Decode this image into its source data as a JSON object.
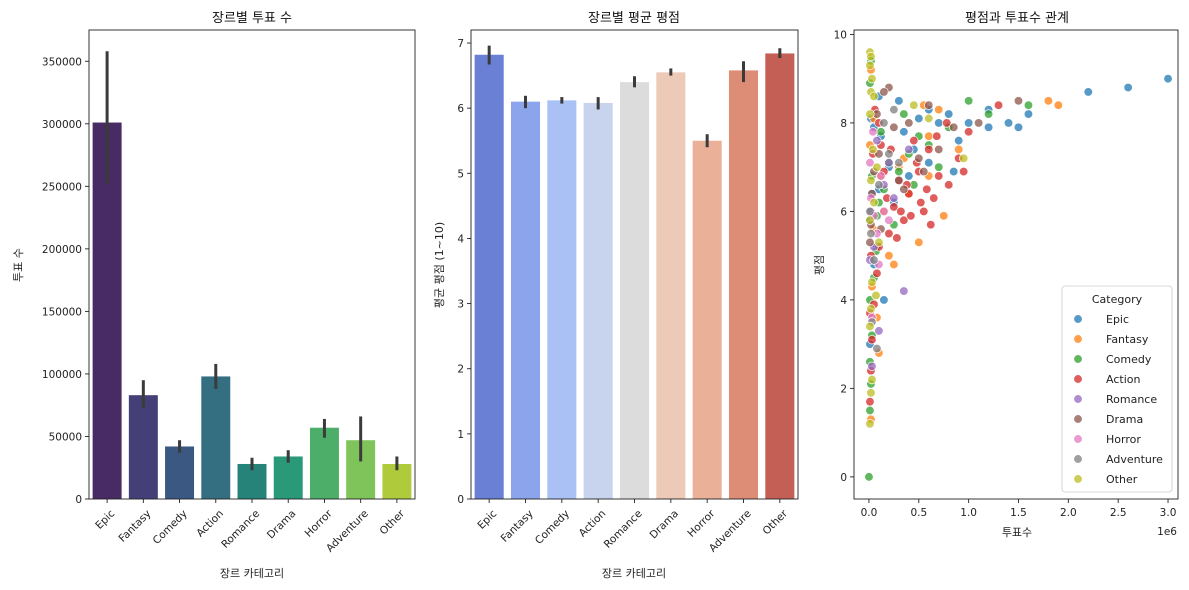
{
  "chart_data": [
    {
      "type": "bar",
      "title": "장르별 투표 수",
      "xlabel": "장르 카테고리",
      "ylabel": "투표 수",
      "ylim": [
        0,
        375000
      ],
      "yticks": [
        0,
        50000,
        100000,
        150000,
        200000,
        250000,
        300000,
        350000
      ],
      "categories": [
        "Epic",
        "Fantasy",
        "Comedy",
        "Action",
        "Romance",
        "Drama",
        "Horror",
        "Adventure",
        "Other"
      ],
      "values": [
        301000,
        83000,
        42000,
        98000,
        28000,
        34000,
        57000,
        47000,
        28000
      ],
      "error_low": [
        252000,
        73000,
        37000,
        88000,
        23000,
        29000,
        49000,
        30000,
        23000
      ],
      "error_high": [
        358000,
        95000,
        47000,
        108000,
        33000,
        39000,
        64000,
        66000,
        34000
      ],
      "colors": [
        "#482a65",
        "#443f77",
        "#3b5883",
        "#336f80",
        "#26837a",
        "#2a9978",
        "#4dae6a",
        "#7fc35b",
        "#afcb3c"
      ]
    },
    {
      "type": "bar",
      "title": "장르별 평균 평점",
      "xlabel": "장르 카테고리",
      "ylabel": "평균 평점 (1~10)",
      "ylim": [
        0,
        7.2
      ],
      "yticks": [
        0,
        1,
        2,
        3,
        4,
        5,
        6,
        7
      ],
      "categories": [
        "Epic",
        "Fantasy",
        "Comedy",
        "Action",
        "Romance",
        "Drama",
        "Horror",
        "Adventure",
        "Other"
      ],
      "values": [
        6.82,
        6.1,
        6.12,
        6.08,
        6.4,
        6.55,
        5.5,
        6.58,
        6.84
      ],
      "error_low": [
        6.67,
        6.0,
        6.07,
        5.98,
        6.32,
        6.5,
        5.4,
        6.4,
        6.77
      ],
      "error_high": [
        6.96,
        6.19,
        6.17,
        6.17,
        6.49,
        6.61,
        5.6,
        6.72,
        6.92
      ],
      "colors": [
        "#6a80d5",
        "#8ba4ec",
        "#aac1f5",
        "#c8d4ee",
        "#dcdcdc",
        "#edcab8",
        "#ebb198",
        "#dd8d76",
        "#c45f55"
      ]
    },
    {
      "type": "scatter",
      "title": "평점과 투표수 관계",
      "xlabel": "투표수",
      "ylabel": "평점",
      "x_offset_label": "1e6",
      "xlim": [
        -0.15,
        3.1
      ],
      "ylim": [
        -0.5,
        10.1
      ],
      "xticks": [
        0.0,
        0.5,
        1.0,
        1.5,
        2.0,
        2.5,
        3.0
      ],
      "xtick_labels": [
        "0.0",
        "0.5",
        "1.0",
        "1.5",
        "2.0",
        "2.5",
        "3.0"
      ],
      "yticks": [
        0,
        2,
        4,
        6,
        8,
        10
      ],
      "legend": {
        "title": "Category",
        "placement": "lower-right",
        "entries": [
          "Epic",
          "Fantasy",
          "Comedy",
          "Action",
          "Romance",
          "Drama",
          "Horror",
          "Adventure",
          "Other"
        ],
        "colors": [
          "#1f77b4",
          "#ff7f0e",
          "#2ca02c",
          "#d62728",
          "#9467bd",
          "#8c564b",
          "#e377c2",
          "#7f7f7f",
          "#bcbd22"
        ]
      },
      "series": [
        {
          "name": "Epic",
          "points": [
            [
              3.0,
              9.0
            ],
            [
              2.6,
              8.8
            ],
            [
              2.2,
              8.7
            ],
            [
              1.6,
              8.2
            ],
            [
              1.5,
              7.9
            ],
            [
              1.4,
              8.0
            ],
            [
              1.2,
              8.3
            ],
            [
              1.2,
              7.9
            ],
            [
              1.0,
              8.0
            ],
            [
              0.9,
              7.6
            ],
            [
              0.8,
              8.2
            ],
            [
              0.7,
              8.0
            ],
            [
              0.6,
              8.3
            ],
            [
              0.5,
              8.1
            ],
            [
              0.45,
              7.4
            ],
            [
              0.4,
              6.8
            ],
            [
              0.35,
              7.8
            ],
            [
              0.3,
              8.5
            ],
            [
              0.2,
              7.0
            ],
            [
              0.15,
              4.0
            ],
            [
              0.12,
              7.7
            ],
            [
              0.1,
              6.5
            ],
            [
              0.08,
              5.2
            ],
            [
              0.05,
              7.9
            ],
            [
              0.03,
              6.4
            ],
            [
              0.02,
              8.1
            ],
            [
              0.05,
              4.8
            ],
            [
              0.25,
              6.2
            ],
            [
              0.6,
              7.1
            ],
            [
              0.85,
              6.9
            ],
            [
              0.1,
              8.6
            ],
            [
              0.01,
              3.0
            ],
            [
              0.01,
              5.8
            ]
          ]
        },
        {
          "name": "Fantasy",
          "points": [
            [
              1.8,
              8.5
            ],
            [
              1.9,
              8.4
            ],
            [
              0.75,
              5.9
            ],
            [
              0.5,
              5.3
            ],
            [
              0.6,
              7.7
            ],
            [
              0.3,
              7.0
            ],
            [
              0.2,
              5.0
            ],
            [
              0.25,
              4.8
            ],
            [
              0.15,
              6.0
            ],
            [
              0.1,
              2.8
            ],
            [
              0.05,
              8.1
            ],
            [
              0.02,
              9.2
            ],
            [
              0.03,
              4.3
            ],
            [
              0.08,
              3.6
            ],
            [
              0.4,
              6.4
            ],
            [
              0.55,
              8.4
            ],
            [
              0.35,
              7.2
            ],
            [
              0.12,
              6.8
            ],
            [
              0.01,
              7.5
            ],
            [
              0.02,
              1.3
            ],
            [
              0.04,
              5.6
            ],
            [
              0.6,
              6.8
            ],
            [
              0.7,
              8.3
            ],
            [
              0.9,
              7.4
            ]
          ]
        },
        {
          "name": "Comedy",
          "points": [
            [
              1.6,
              8.4
            ],
            [
              1.2,
              8.2
            ],
            [
              1.0,
              8.5
            ],
            [
              0.8,
              7.9
            ],
            [
              0.6,
              7.5
            ],
            [
              0.5,
              7.7
            ],
            [
              0.4,
              7.3
            ],
            [
              0.3,
              6.9
            ],
            [
              0.2,
              7.1
            ],
            [
              0.15,
              6.5
            ],
            [
              0.1,
              6.2
            ],
            [
              0.08,
              5.9
            ],
            [
              0.05,
              4.5
            ],
            [
              0.03,
              3.2
            ],
            [
              0.02,
              2.1
            ],
            [
              0.01,
              1.5
            ],
            [
              0.0,
              0.0
            ],
            [
              0.01,
              8.9
            ],
            [
              0.02,
              9.4
            ],
            [
              0.03,
              6.8
            ],
            [
              0.07,
              5.1
            ],
            [
              0.12,
              7.8
            ],
            [
              0.25,
              5.7
            ],
            [
              0.45,
              6.6
            ],
            [
              0.35,
              8.2
            ],
            [
              0.7,
              7.0
            ],
            [
              0.01,
              4.0
            ],
            [
              0.01,
              2.6
            ]
          ]
        },
        {
          "name": "Action",
          "points": [
            [
              1.3,
              8.4
            ],
            [
              1.0,
              7.8
            ],
            [
              0.9,
              7.2
            ],
            [
              0.8,
              6.6
            ],
            [
              0.7,
              6.8
            ],
            [
              0.65,
              6.3
            ],
            [
              0.6,
              7.4
            ],
            [
              0.55,
              6.0
            ],
            [
              0.5,
              6.9
            ],
            [
              0.45,
              7.6
            ],
            [
              0.4,
              6.4
            ],
            [
              0.35,
              5.8
            ],
            [
              0.3,
              6.7
            ],
            [
              0.25,
              6.1
            ],
            [
              0.2,
              5.5
            ],
            [
              0.15,
              6.9
            ],
            [
              0.1,
              5.2
            ],
            [
              0.08,
              4.6
            ],
            [
              0.05,
              3.9
            ],
            [
              0.03,
              3.1
            ],
            [
              0.02,
              2.4
            ],
            [
              0.01,
              1.7
            ],
            [
              0.01,
              3.7
            ],
            [
              0.02,
              5.0
            ],
            [
              0.04,
              7.3
            ],
            [
              0.06,
              8.3
            ],
            [
              0.12,
              7.5
            ],
            [
              0.18,
              6.3
            ],
            [
              0.28,
              5.4
            ],
            [
              0.38,
              6.6
            ],
            [
              0.48,
              7.1
            ],
            [
              0.58,
              6.5
            ],
            [
              0.68,
              7.7
            ],
            [
              0.78,
              8.0
            ],
            [
              0.95,
              6.9
            ],
            [
              0.1,
              8.0
            ],
            [
              0.22,
              7.4
            ],
            [
              0.32,
              6.0
            ],
            [
              0.42,
              5.9
            ],
            [
              0.52,
              6.2
            ],
            [
              0.62,
              5.7
            ]
          ]
        },
        {
          "name": "Romance",
          "points": [
            [
              0.35,
              4.2
            ],
            [
              0.1,
              3.3
            ],
            [
              0.05,
              5.2
            ],
            [
              0.02,
              6.0
            ],
            [
              0.15,
              6.6
            ],
            [
              0.2,
              7.1
            ],
            [
              0.01,
              4.9
            ],
            [
              0.03,
              2.5
            ],
            [
              0.08,
              7.6
            ],
            [
              0.25,
              6.3
            ],
            [
              0.4,
              7.4
            ]
          ]
        },
        {
          "name": "Drama",
          "points": [
            [
              1.5,
              8.5
            ],
            [
              1.1,
              8.0
            ],
            [
              0.85,
              7.9
            ],
            [
              0.7,
              7.4
            ],
            [
              0.5,
              7.2
            ],
            [
              0.3,
              6.7
            ],
            [
              0.2,
              8.8
            ],
            [
              0.15,
              8.7
            ],
            [
              0.1,
              7.3
            ],
            [
              0.05,
              6.9
            ],
            [
              0.03,
              6.4
            ],
            [
              0.02,
              5.7
            ],
            [
              0.01,
              5.3
            ],
            [
              0.12,
              5.6
            ],
            [
              0.25,
              7.9
            ],
            [
              0.4,
              8.0
            ],
            [
              0.6,
              8.4
            ],
            [
              0.08,
              8.2
            ],
            [
              0.35,
              6.5
            ],
            [
              0.55,
              6.9
            ]
          ]
        },
        {
          "name": "Horror",
          "points": [
            [
              0.05,
              5.9
            ],
            [
              0.02,
              6.3
            ],
            [
              0.08,
              5.5
            ],
            [
              0.1,
              4.8
            ],
            [
              0.03,
              3.6
            ],
            [
              0.15,
              6.0
            ],
            [
              0.01,
              7.1
            ],
            [
              0.2,
              5.8
            ],
            [
              0.04,
              7.8
            ],
            [
              0.12,
              6.8
            ]
          ]
        },
        {
          "name": "Adventure",
          "points": [
            [
              0.05,
              4.9
            ],
            [
              0.02,
              5.5
            ],
            [
              0.1,
              6.6
            ],
            [
              0.15,
              8.0
            ],
            [
              0.03,
              3.5
            ],
            [
              0.2,
              7.3
            ],
            [
              0.01,
              6.0
            ],
            [
              0.08,
              2.9
            ],
            [
              0.25,
              8.3
            ],
            [
              0.3,
              7.1
            ]
          ]
        },
        {
          "name": "Other",
          "points": [
            [
              0.01,
              9.6
            ],
            [
              0.02,
              9.5
            ],
            [
              0.01,
              9.3
            ],
            [
              0.03,
              9.0
            ],
            [
              0.02,
              8.7
            ],
            [
              0.05,
              8.6
            ],
            [
              0.01,
              8.2
            ],
            [
              0.04,
              7.4
            ],
            [
              0.02,
              6.7
            ],
            [
              0.01,
              5.8
            ],
            [
              0.03,
              4.4
            ],
            [
              0.02,
              3.8
            ],
            [
              0.01,
              3.4
            ],
            [
              0.03,
              2.2
            ],
            [
              0.02,
              1.9
            ],
            [
              0.01,
              1.2
            ],
            [
              0.05,
              6.2
            ],
            [
              0.08,
              7.0
            ],
            [
              0.1,
              5.3
            ],
            [
              0.07,
              4.1
            ],
            [
              0.95,
              7.2
            ],
            [
              0.6,
              8.1
            ],
            [
              0.45,
              8.4
            ]
          ]
        }
      ]
    }
  ]
}
